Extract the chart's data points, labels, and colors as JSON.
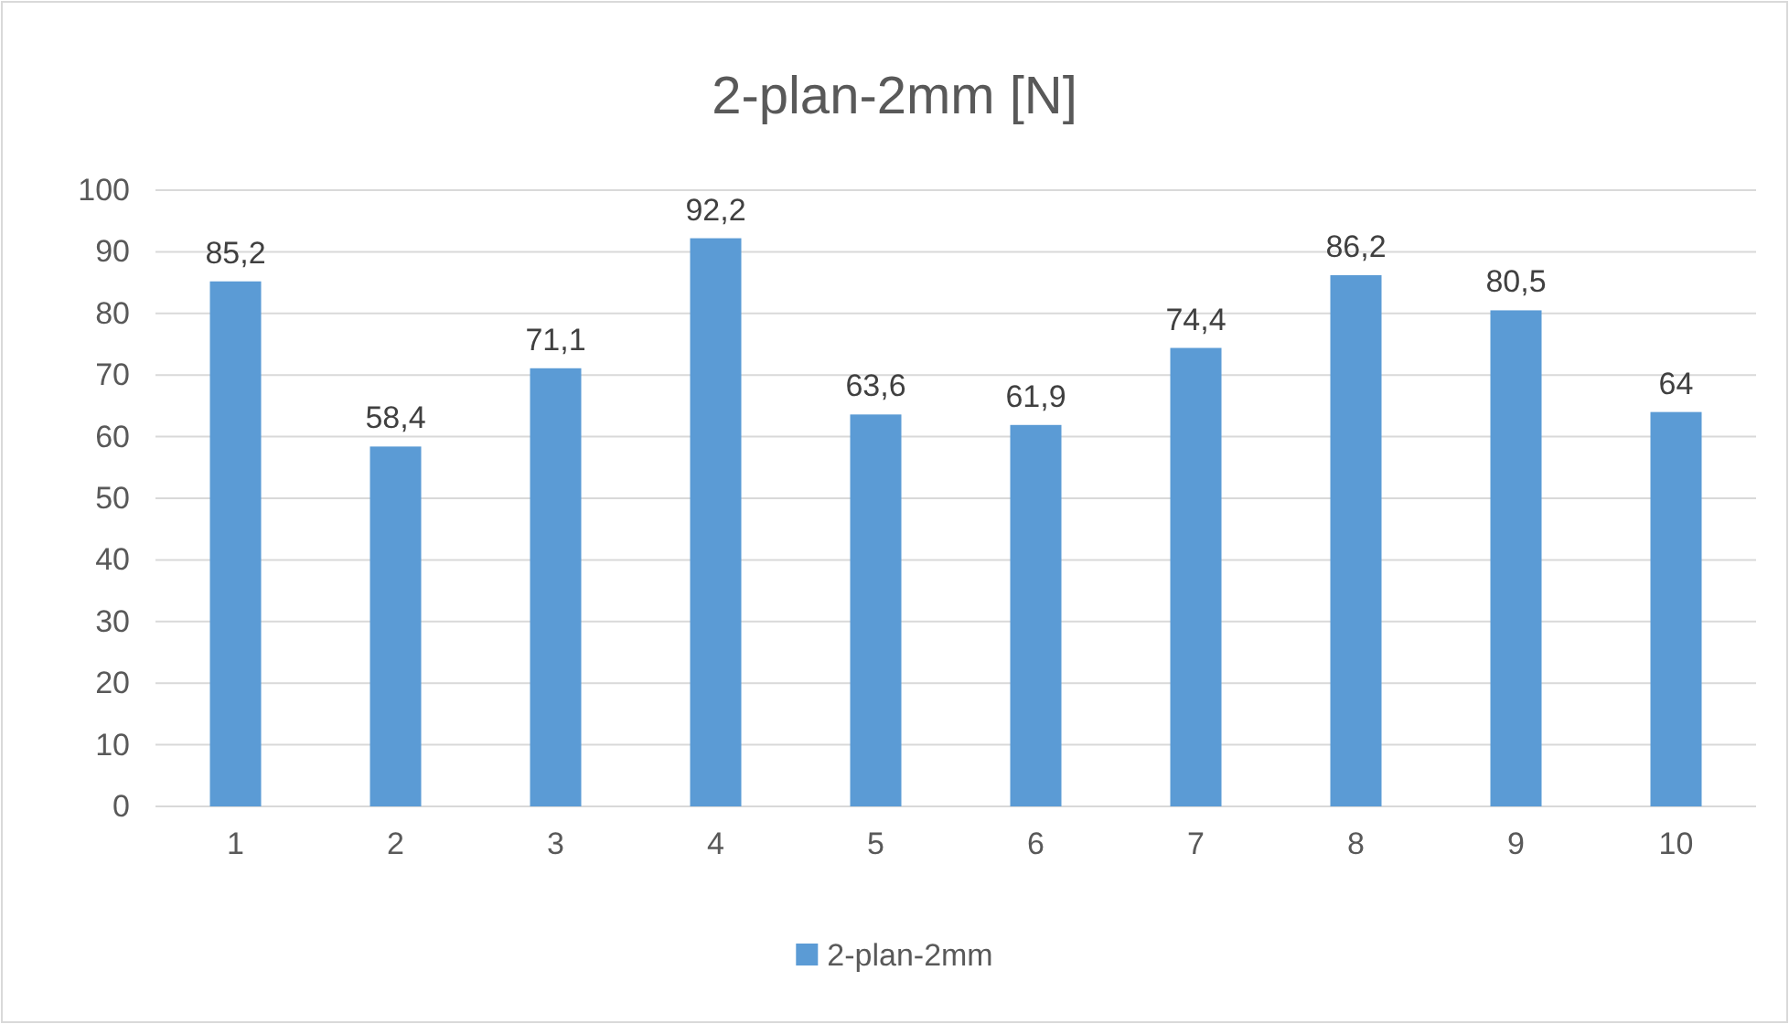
{
  "chart_data": {
    "type": "bar",
    "title": "2-plan-2mm [N]",
    "categories": [
      "1",
      "2",
      "3",
      "4",
      "5",
      "6",
      "7",
      "8",
      "9",
      "10"
    ],
    "series": [
      {
        "name": "2-plan-2mm",
        "color": "#5b9bd5",
        "values": [
          85.2,
          58.4,
          71.1,
          92.2,
          63.6,
          61.9,
          74.4,
          86.2,
          80.5,
          64
        ],
        "value_labels": [
          "85,2",
          "58,4",
          "71,1",
          "92,2",
          "63,6",
          "61,9",
          "74,4",
          "86,2",
          "80,5",
          "64"
        ]
      }
    ],
    "ylim": [
      0,
      100
    ],
    "yticks": [
      0,
      10,
      20,
      30,
      40,
      50,
      60,
      70,
      80,
      90,
      100
    ],
    "grid": "y",
    "legend": "bottom"
  }
}
